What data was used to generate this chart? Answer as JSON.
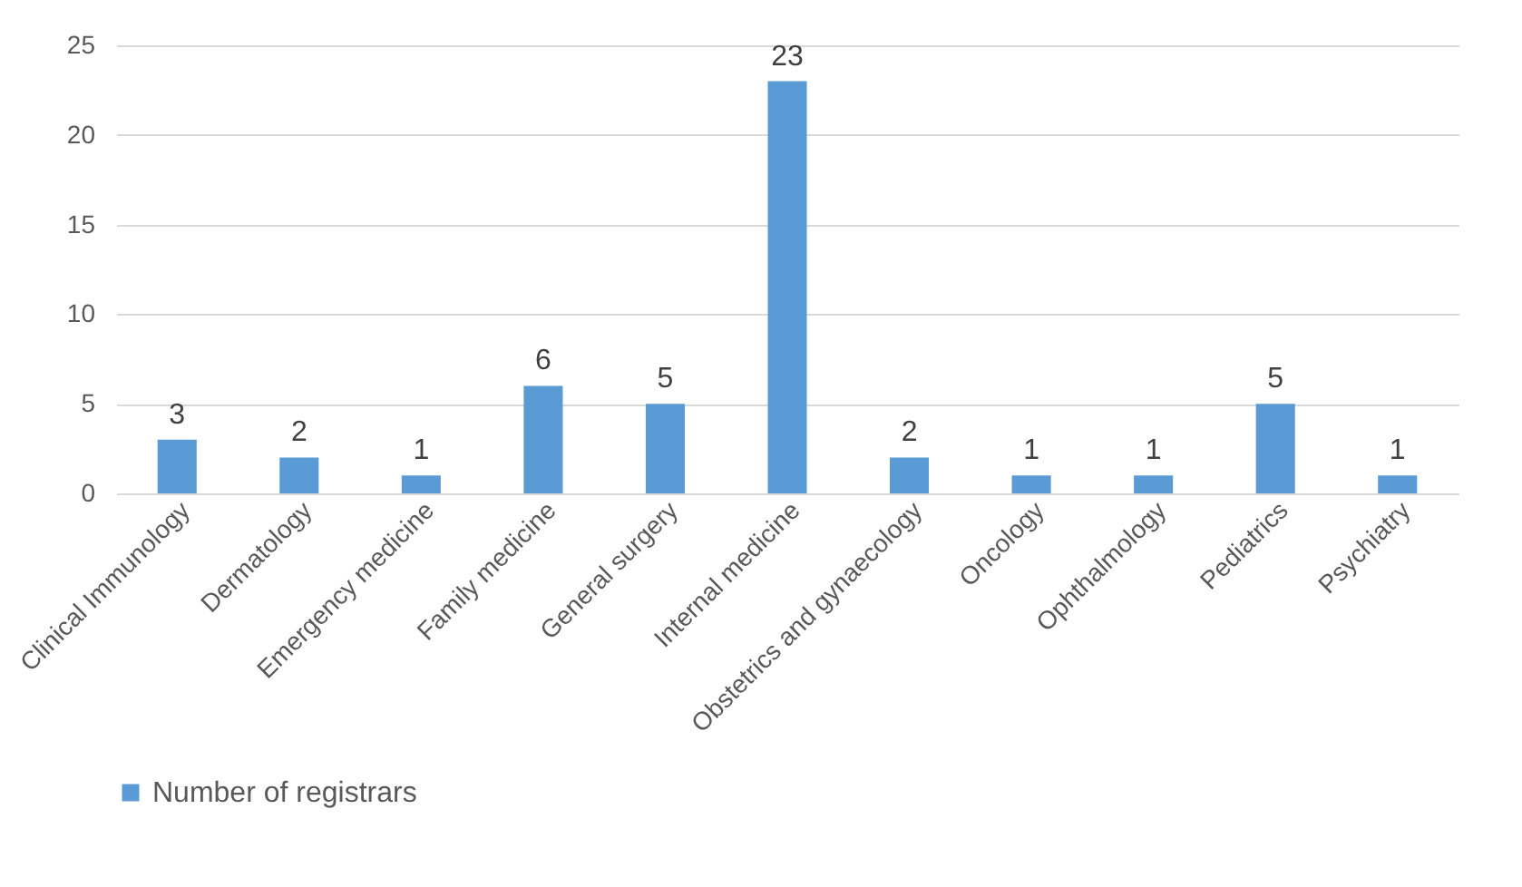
{
  "chart_data": {
    "type": "bar",
    "categories": [
      "Clinical Immunology",
      "Dermatology",
      "Emergency medicine",
      "Family medicine",
      "General surgery",
      "Internal medicine",
      "Obstetrics and gynaecology",
      "Oncology",
      "Ophthalmology",
      "Pediatrics",
      "Psychiatry"
    ],
    "series": [
      {
        "name": "Number of registrars",
        "color": "#5b9bd5",
        "values": [
          3,
          2,
          1,
          6,
          5,
          23,
          2,
          1,
          1,
          5,
          1
        ]
      }
    ],
    "ylim": [
      0,
      25
    ],
    "yticks": [
      0,
      5,
      10,
      15,
      20,
      25
    ],
    "grid": "y",
    "legend": "bottom",
    "data_labels": true
  }
}
